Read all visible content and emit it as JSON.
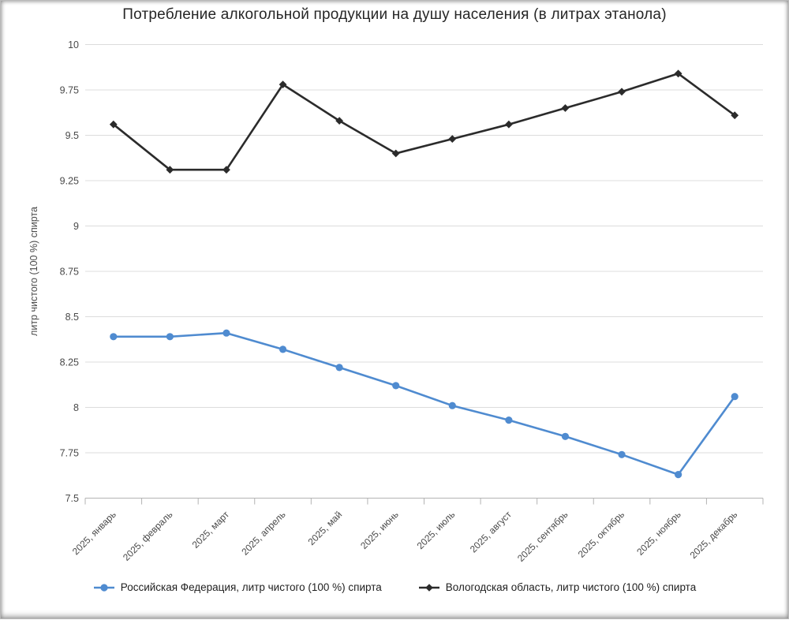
{
  "chart_data": {
    "type": "line",
    "title": "Потребление алкогольной продукции на душу населения (в литрах этанола)",
    "ylabel": "литр чистого (100 %) спирта",
    "xlabel": "",
    "ylim": [
      7.5,
      10
    ],
    "ytick_labels": [
      "7.5",
      "7.75",
      "8",
      "8.25",
      "8.5",
      "8.75",
      "9",
      "9.25",
      "9.5",
      "9.75",
      "10"
    ],
    "grid": "horizontal",
    "legend_position": "bottom",
    "categories": [
      "2025, январь",
      "2025, февраль",
      "2025, март",
      "2025, апрель",
      "2025, май",
      "2025, июнь",
      "2025, июль",
      "2025, август",
      "2025, сентябрь",
      "2025, октябрь",
      "2025, ноябрь",
      "2025, декабрь"
    ],
    "series": [
      {
        "key": "rf",
        "name": "Российская Федерация, литр чистого (100 %) спирта",
        "marker": "circle",
        "color": "#4f8bd0",
        "values": [
          8.39,
          8.39,
          8.41,
          8.32,
          8.22,
          8.12,
          8.01,
          7.93,
          7.84,
          7.74,
          7.63,
          8.06
        ]
      },
      {
        "key": "vologda",
        "name": "Вологодская область, литр чистого (100 %) спирта",
        "marker": "diamond",
        "color": "#2b2b2b",
        "values": [
          9.56,
          9.31,
          9.31,
          9.78,
          9.58,
          9.4,
          9.48,
          9.56,
          9.65,
          9.74,
          9.84,
          9.61
        ]
      }
    ]
  },
  "theme": {
    "grid_color": "#dcdcdc",
    "axis_color": "#b3b3b3",
    "tick_text_color": "#4a4a4a",
    "title_color": "#262626"
  }
}
